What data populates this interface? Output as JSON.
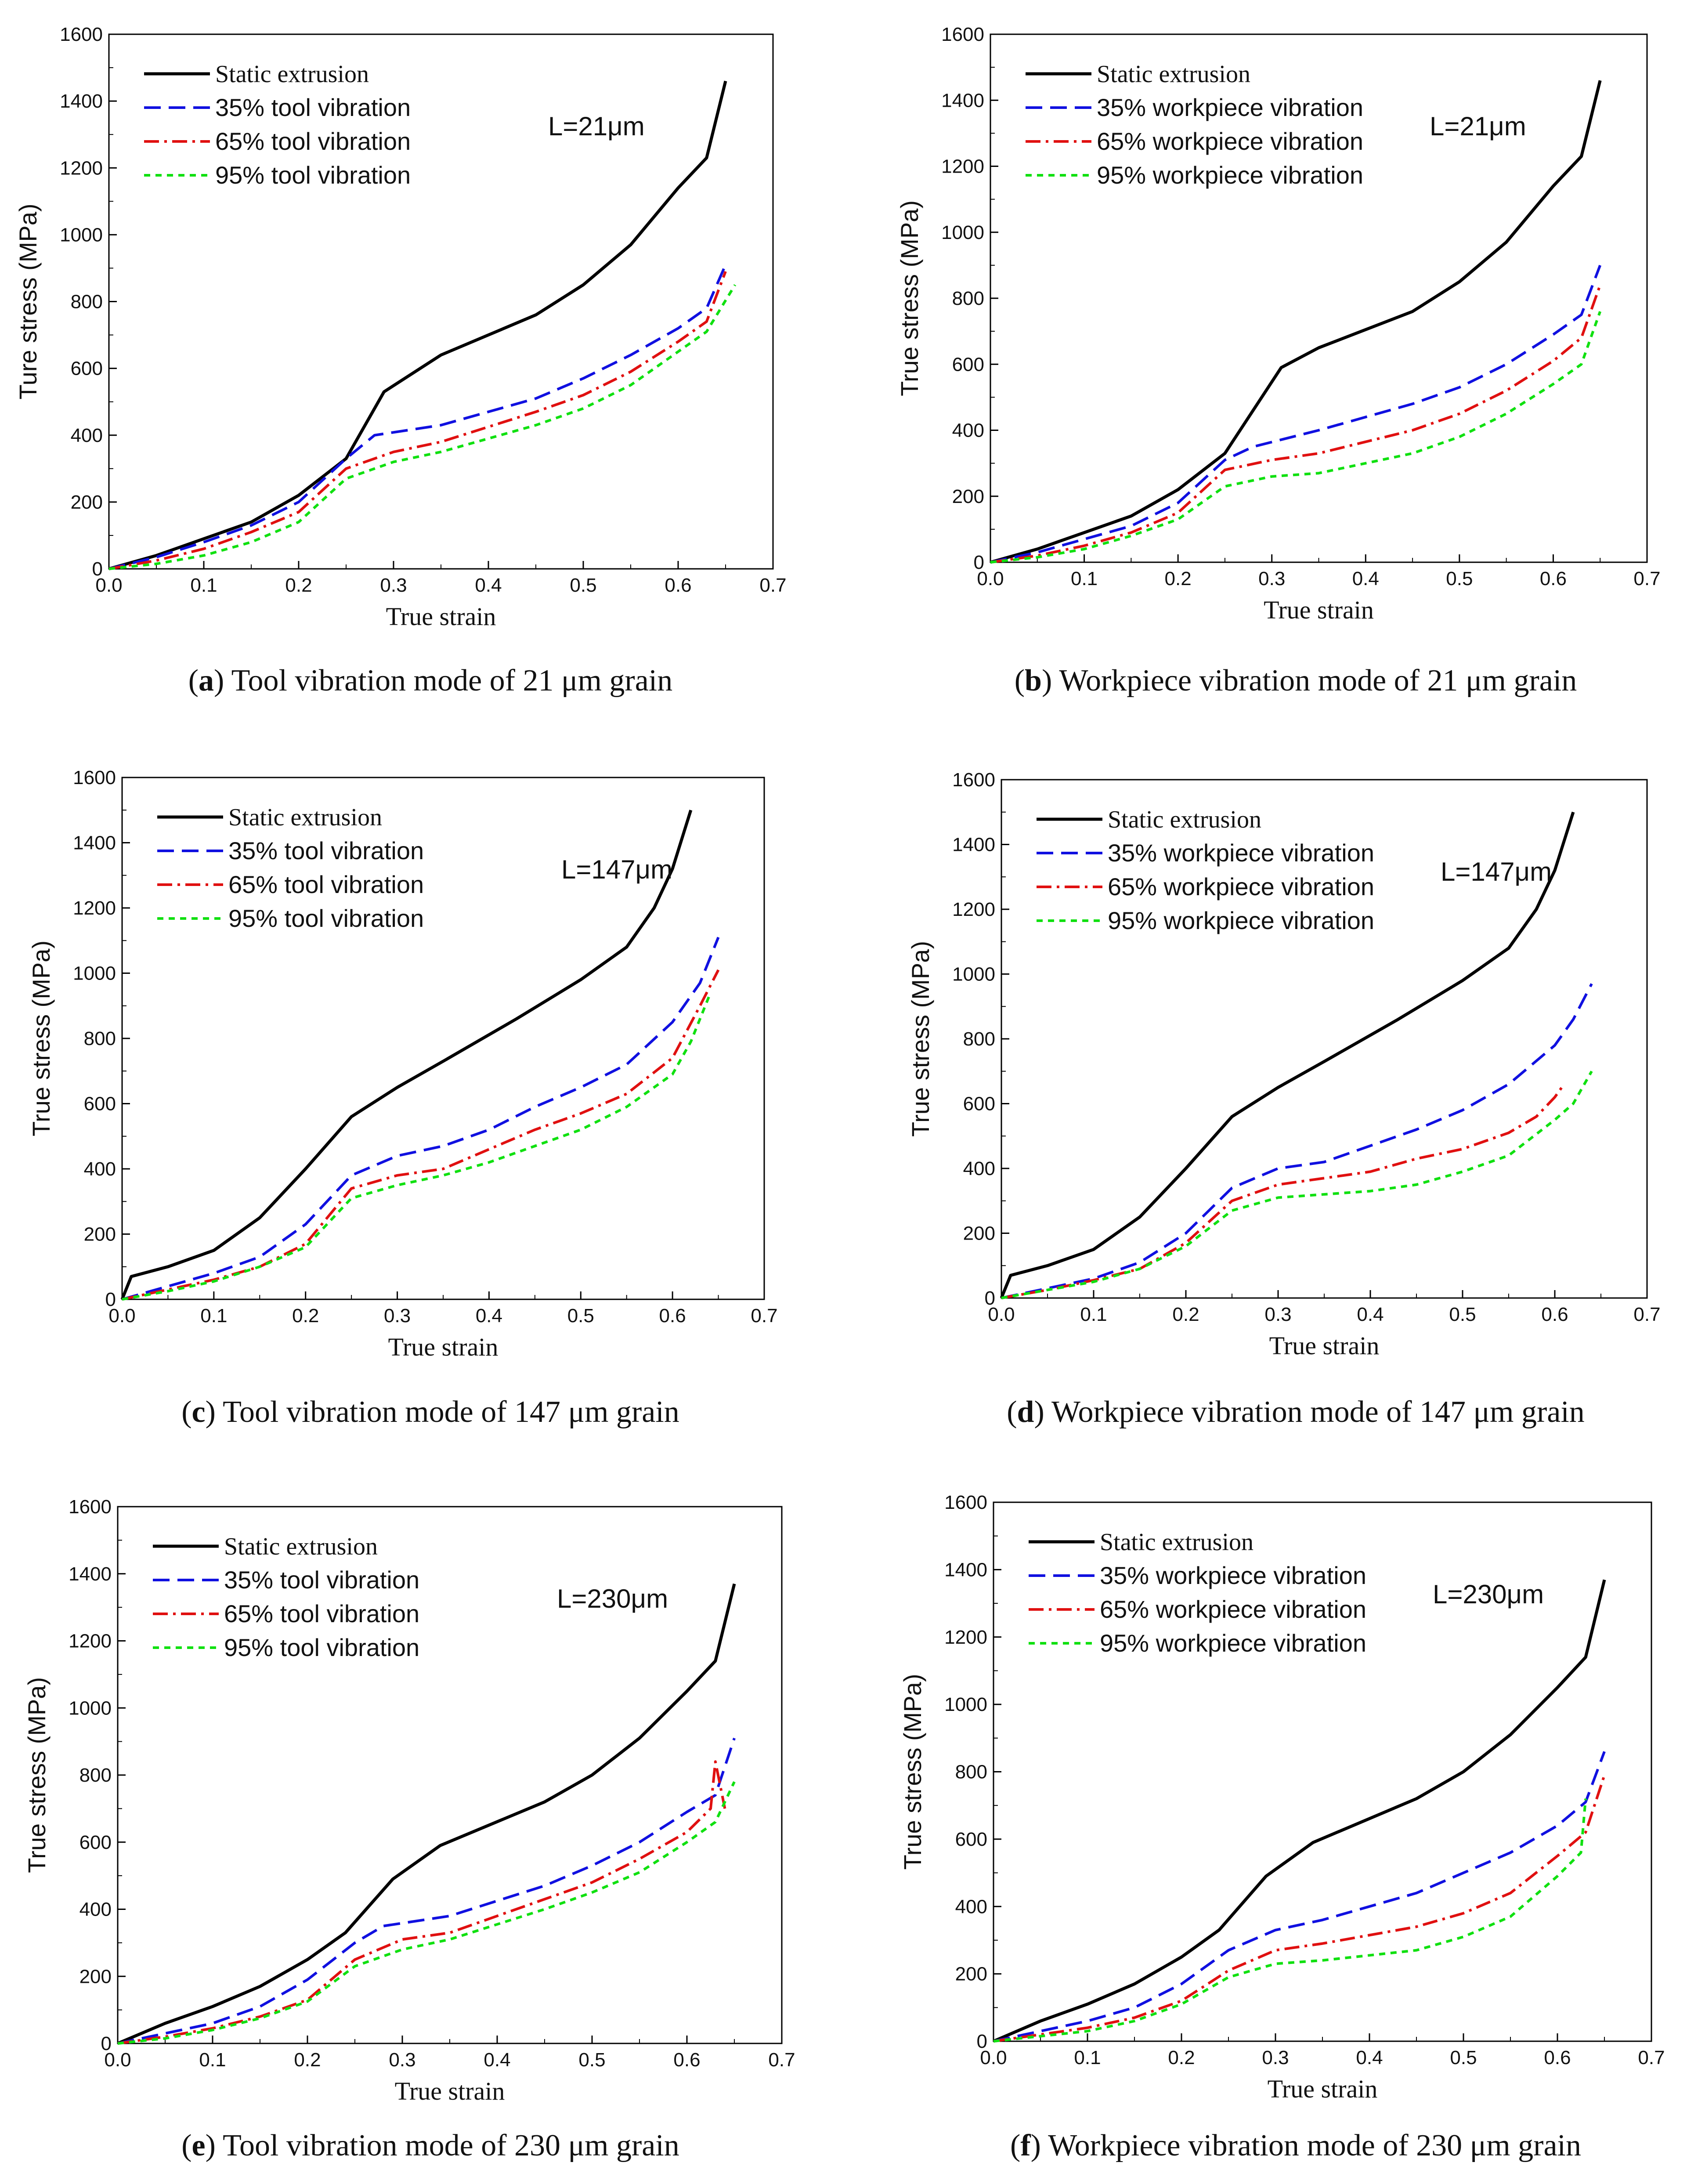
{
  "figure": {
    "styles": {
      "static": {
        "color": "#000000",
        "dash": ""
      },
      "p35": {
        "color": "#1010e0",
        "dash": "38,18"
      },
      "p65": {
        "color": "#e01010",
        "dash": "34,12,6,12"
      },
      "p95": {
        "color": "#10e010",
        "dash": "14,12"
      }
    }
  },
  "chart_data": [
    {
      "type": "line",
      "panel": "a",
      "caption_letter": "a",
      "caption_text": " Tool vibration mode of 21 μm grain",
      "xlabel": "True strain",
      "ylabel": "Ture stress (MPa)",
      "xlim": [
        0.0,
        0.7
      ],
      "ylim": [
        0,
        1600
      ],
      "xticks": [
        "0.0",
        "0.1",
        "0.2",
        "0.3",
        "0.4",
        "0.5",
        "0.6",
        "0.7"
      ],
      "yticks": [
        "0",
        "200",
        "400",
        "600",
        "800",
        "1000",
        "1200",
        "1400",
        "1600"
      ],
      "annotation": "L=21μm",
      "series": [
        {
          "name": "Static extrusion",
          "style": "static",
          "x": [
            0,
            0.05,
            0.1,
            0.15,
            0.2,
            0.25,
            0.29,
            0.35,
            0.45,
            0.5,
            0.55,
            0.6,
            0.63,
            0.65
          ],
          "y": [
            0,
            40,
            90,
            140,
            220,
            330,
            530,
            640,
            760,
            850,
            970,
            1140,
            1230,
            1460
          ]
        },
        {
          "name": "35% tool vibration",
          "style": "p35",
          "x": [
            0,
            0.05,
            0.1,
            0.15,
            0.2,
            0.25,
            0.28,
            0.35,
            0.45,
            0.5,
            0.55,
            0.6,
            0.63,
            0.65
          ],
          "y": [
            0,
            35,
            80,
            130,
            200,
            330,
            400,
            430,
            510,
            570,
            640,
            720,
            780,
            910
          ]
        },
        {
          "name": "65% tool vibration",
          "style": "p65",
          "x": [
            0,
            0.05,
            0.1,
            0.15,
            0.2,
            0.25,
            0.3,
            0.35,
            0.45,
            0.5,
            0.55,
            0.6,
            0.63,
            0.65
          ],
          "y": [
            0,
            25,
            60,
            110,
            170,
            300,
            350,
            380,
            470,
            520,
            590,
            680,
            740,
            890
          ]
        },
        {
          "name": "95% tool vibration",
          "style": "p95",
          "x": [
            0,
            0.05,
            0.1,
            0.15,
            0.2,
            0.25,
            0.3,
            0.35,
            0.45,
            0.5,
            0.55,
            0.6,
            0.63,
            0.66
          ],
          "y": [
            0,
            15,
            40,
            80,
            140,
            270,
            320,
            350,
            430,
            480,
            550,
            650,
            710,
            850
          ]
        }
      ]
    },
    {
      "type": "line",
      "panel": "b",
      "caption_letter": "b",
      "caption_text": " Workpiece vibration mode of 21 μm grain",
      "xlabel": "True strain",
      "ylabel": "True stress (MPa)",
      "xlim": [
        0.0,
        0.7
      ],
      "ylim": [
        0,
        1600
      ],
      "xticks": [
        "0.0",
        "0.1",
        "0.2",
        "0.3",
        "0.4",
        "0.5",
        "0.6",
        "0.7"
      ],
      "yticks": [
        "0",
        "200",
        "400",
        "600",
        "800",
        "1000",
        "1200",
        "1400",
        "1600"
      ],
      "annotation": "L=21μm",
      "series": [
        {
          "name": "Static extrusion",
          "style": "static",
          "x": [
            0,
            0.05,
            0.1,
            0.15,
            0.2,
            0.25,
            0.31,
            0.35,
            0.45,
            0.5,
            0.55,
            0.6,
            0.63,
            0.65
          ],
          "y": [
            0,
            40,
            90,
            140,
            220,
            330,
            590,
            650,
            760,
            850,
            970,
            1140,
            1230,
            1460
          ]
        },
        {
          "name": "35% workpiece vibration",
          "style": "p35",
          "x": [
            0,
            0.05,
            0.1,
            0.15,
            0.2,
            0.25,
            0.28,
            0.35,
            0.45,
            0.5,
            0.55,
            0.6,
            0.63,
            0.65
          ],
          "y": [
            0,
            30,
            70,
            110,
            180,
            310,
            350,
            400,
            480,
            530,
            600,
            690,
            750,
            900
          ]
        },
        {
          "name": "65% workpiece vibration",
          "style": "p65",
          "x": [
            0,
            0.05,
            0.1,
            0.15,
            0.2,
            0.25,
            0.3,
            0.35,
            0.45,
            0.5,
            0.55,
            0.6,
            0.63,
            0.65
          ],
          "y": [
            0,
            20,
            50,
            90,
            150,
            280,
            310,
            330,
            400,
            450,
            520,
            610,
            680,
            840
          ]
        },
        {
          "name": "95% workpiece vibration",
          "style": "p95",
          "x": [
            0,
            0.05,
            0.1,
            0.15,
            0.2,
            0.25,
            0.3,
            0.35,
            0.45,
            0.5,
            0.55,
            0.6,
            0.63,
            0.65
          ],
          "y": [
            0,
            15,
            40,
            80,
            130,
            230,
            260,
            270,
            330,
            380,
            450,
            540,
            600,
            760
          ]
        }
      ]
    },
    {
      "type": "line",
      "panel": "c",
      "caption_letter": "c",
      "caption_text": " Tool vibration mode of 147 μm grain",
      "xlabel": "True strain",
      "ylabel": "True stress (MPa)",
      "xlim": [
        0.0,
        0.7
      ],
      "ylim": [
        0,
        1600
      ],
      "xticks": [
        "0.0",
        "0.1",
        "0.2",
        "0.3",
        "0.4",
        "0.5",
        "0.6",
        "0.7"
      ],
      "yticks": [
        "0",
        "200",
        "400",
        "600",
        "800",
        "1000",
        "1200",
        "1400",
        "1600"
      ],
      "annotation": "L=147μm",
      "series": [
        {
          "name": "Static extrusion",
          "style": "static",
          "x": [
            0,
            0.01,
            0.05,
            0.1,
            0.15,
            0.2,
            0.25,
            0.3,
            0.35,
            0.43,
            0.5,
            0.55,
            0.58,
            0.6,
            0.62
          ],
          "y": [
            0,
            70,
            100,
            150,
            250,
            400,
            560,
            650,
            730,
            860,
            980,
            1080,
            1200,
            1320,
            1500
          ]
        },
        {
          "name": "35% tool vibration",
          "style": "p35",
          "x": [
            0,
            0.05,
            0.1,
            0.15,
            0.2,
            0.25,
            0.3,
            0.35,
            0.4,
            0.45,
            0.5,
            0.55,
            0.6,
            0.63,
            0.65
          ],
          "y": [
            0,
            40,
            80,
            130,
            230,
            380,
            440,
            470,
            520,
            590,
            650,
            720,
            850,
            970,
            1110
          ]
        },
        {
          "name": "65% tool vibration",
          "style": "p65",
          "x": [
            0,
            0.05,
            0.1,
            0.15,
            0.2,
            0.25,
            0.3,
            0.35,
            0.4,
            0.45,
            0.5,
            0.55,
            0.6,
            0.63,
            0.65
          ],
          "y": [
            0,
            30,
            60,
            100,
            170,
            340,
            380,
            400,
            460,
            520,
            570,
            630,
            740,
            900,
            1010
          ]
        },
        {
          "name": "95% tool vibration",
          "style": "p95",
          "x": [
            0,
            0.05,
            0.1,
            0.15,
            0.2,
            0.25,
            0.3,
            0.35,
            0.4,
            0.45,
            0.5,
            0.55,
            0.6,
            0.62,
            0.64
          ],
          "y": [
            0,
            25,
            55,
            100,
            160,
            310,
            350,
            380,
            420,
            470,
            520,
            590,
            690,
            790,
            930
          ]
        }
      ]
    },
    {
      "type": "line",
      "panel": "d",
      "caption_letter": "d",
      "caption_text": " Workpiece vibration mode of 147 μm grain",
      "xlabel": "True strain",
      "ylabel": "True stress (MPa)",
      "xlim": [
        0.0,
        0.7
      ],
      "ylim": [
        0,
        1600
      ],
      "xticks": [
        "0.0",
        "0.1",
        "0.2",
        "0.3",
        "0.4",
        "0.5",
        "0.6",
        "0.7"
      ],
      "yticks": [
        "0",
        "200",
        "400",
        "600",
        "800",
        "1000",
        "1200",
        "1400",
        "1600"
      ],
      "annotation": "L=147μm",
      "series": [
        {
          "name": "Static extrusion",
          "style": "static",
          "x": [
            0,
            0.01,
            0.05,
            0.1,
            0.15,
            0.2,
            0.25,
            0.3,
            0.35,
            0.43,
            0.5,
            0.55,
            0.58,
            0.6,
            0.62
          ],
          "y": [
            0,
            70,
            100,
            150,
            250,
            400,
            560,
            650,
            730,
            860,
            980,
            1080,
            1200,
            1320,
            1500
          ]
        },
        {
          "name": "35% workpiece vibration",
          "style": "p35",
          "x": [
            0,
            0.05,
            0.1,
            0.15,
            0.2,
            0.25,
            0.3,
            0.35,
            0.4,
            0.45,
            0.5,
            0.55,
            0.6,
            0.62,
            0.64
          ],
          "y": [
            0,
            30,
            60,
            110,
            200,
            340,
            400,
            420,
            470,
            520,
            580,
            660,
            780,
            860,
            970
          ]
        },
        {
          "name": "65% workpiece vibration",
          "style": "p65",
          "x": [
            0,
            0.05,
            0.1,
            0.15,
            0.2,
            0.25,
            0.3,
            0.35,
            0.4,
            0.45,
            0.5,
            0.55,
            0.58,
            0.6,
            0.61
          ],
          "y": [
            0,
            25,
            55,
            90,
            170,
            300,
            350,
            370,
            390,
            430,
            460,
            510,
            560,
            620,
            660
          ]
        },
        {
          "name": "95% workpiece vibration",
          "style": "p95",
          "x": [
            0,
            0.05,
            0.1,
            0.15,
            0.2,
            0.25,
            0.3,
            0.35,
            0.4,
            0.45,
            0.5,
            0.55,
            0.6,
            0.62,
            0.64
          ],
          "y": [
            0,
            25,
            50,
            90,
            160,
            270,
            310,
            320,
            330,
            350,
            390,
            440,
            550,
            600,
            700
          ]
        }
      ]
    },
    {
      "type": "line",
      "panel": "e",
      "caption_letter": "e",
      "caption_text": " Tool vibration mode of 230 μm grain",
      "xlabel": "True strain",
      "ylabel": "True stress (MPa)",
      "xlim": [
        0.0,
        0.7
      ],
      "ylim": [
        0,
        1600
      ],
      "xticks": [
        "0.0",
        "0.1",
        "0.2",
        "0.3",
        "0.4",
        "0.5",
        "0.6",
        "0.7"
      ],
      "yticks": [
        "0",
        "200",
        "400",
        "600",
        "800",
        "1000",
        "1200",
        "1400",
        "1600"
      ],
      "annotation": "L=230μm",
      "series": [
        {
          "name": "Static extrusion",
          "style": "static",
          "x": [
            0,
            0.05,
            0.1,
            0.15,
            0.2,
            0.24,
            0.29,
            0.34,
            0.45,
            0.5,
            0.55,
            0.6,
            0.63,
            0.65
          ],
          "y": [
            0,
            60,
            110,
            170,
            250,
            330,
            490,
            590,
            720,
            800,
            910,
            1050,
            1140,
            1370
          ]
        },
        {
          "name": "35% tool vibration",
          "style": "p35",
          "x": [
            0,
            0.05,
            0.1,
            0.15,
            0.2,
            0.25,
            0.28,
            0.35,
            0.45,
            0.5,
            0.55,
            0.6,
            0.63,
            0.65
          ],
          "y": [
            0,
            30,
            60,
            110,
            190,
            300,
            350,
            380,
            470,
            530,
            600,
            690,
            740,
            910
          ]
        },
        {
          "name": "65% tool vibration",
          "style": "p65",
          "x": [
            0,
            0.05,
            0.1,
            0.15,
            0.2,
            0.25,
            0.3,
            0.35,
            0.45,
            0.5,
            0.55,
            0.6,
            0.625,
            0.63,
            0.64
          ],
          "y": [
            0,
            20,
            45,
            80,
            130,
            250,
            310,
            330,
            430,
            480,
            550,
            630,
            700,
            840,
            700
          ]
        },
        {
          "name": "95% tool vibration",
          "style": "p95",
          "x": [
            0,
            0.05,
            0.1,
            0.15,
            0.2,
            0.25,
            0.3,
            0.35,
            0.45,
            0.5,
            0.55,
            0.6,
            0.63,
            0.65
          ],
          "y": [
            0,
            15,
            40,
            75,
            125,
            230,
            280,
            310,
            400,
            450,
            510,
            600,
            660,
            780
          ]
        }
      ]
    },
    {
      "type": "line",
      "panel": "f",
      "caption_letter": "f",
      "caption_text": " Workpiece vibration mode of 230 μm grain",
      "xlabel": "True strain",
      "ylabel": "True stress (MPa)",
      "xlim": [
        0.0,
        0.7
      ],
      "ylim": [
        0,
        1600
      ],
      "xticks": [
        "0.0",
        "0.1",
        "0.2",
        "0.3",
        "0.4",
        "0.5",
        "0.6",
        "0.7"
      ],
      "yticks": [
        "0",
        "200",
        "400",
        "600",
        "800",
        "1000",
        "1200",
        "1400",
        "1600"
      ],
      "annotation": "L=230μm",
      "series": [
        {
          "name": "Static extrusion",
          "style": "static",
          "x": [
            0,
            0.05,
            0.1,
            0.15,
            0.2,
            0.24,
            0.29,
            0.34,
            0.45,
            0.5,
            0.55,
            0.6,
            0.63,
            0.65
          ],
          "y": [
            0,
            60,
            110,
            170,
            250,
            330,
            490,
            590,
            720,
            800,
            910,
            1050,
            1140,
            1370
          ]
        },
        {
          "name": "35% workpiece vibration",
          "style": "p35",
          "x": [
            0,
            0.05,
            0.1,
            0.15,
            0.2,
            0.25,
            0.3,
            0.35,
            0.45,
            0.5,
            0.55,
            0.6,
            0.63,
            0.65
          ],
          "y": [
            0,
            30,
            60,
            100,
            170,
            270,
            330,
            360,
            440,
            500,
            560,
            640,
            710,
            860
          ]
        },
        {
          "name": "65% workpiece vibration",
          "style": "p65",
          "x": [
            0,
            0.05,
            0.1,
            0.15,
            0.2,
            0.25,
            0.3,
            0.35,
            0.45,
            0.5,
            0.55,
            0.6,
            0.63,
            0.65
          ],
          "y": [
            0,
            20,
            40,
            70,
            120,
            210,
            270,
            290,
            340,
            380,
            440,
            550,
            620,
            790
          ]
        },
        {
          "name": "95% workpiece vibration",
          "style": "p95",
          "x": [
            0,
            0.05,
            0.1,
            0.15,
            0.2,
            0.25,
            0.3,
            0.35,
            0.45,
            0.5,
            0.55,
            0.6,
            0.625,
            0.63
          ],
          "y": [
            0,
            15,
            30,
            60,
            110,
            190,
            230,
            240,
            270,
            310,
            370,
            490,
            560,
            720
          ]
        }
      ]
    }
  ]
}
